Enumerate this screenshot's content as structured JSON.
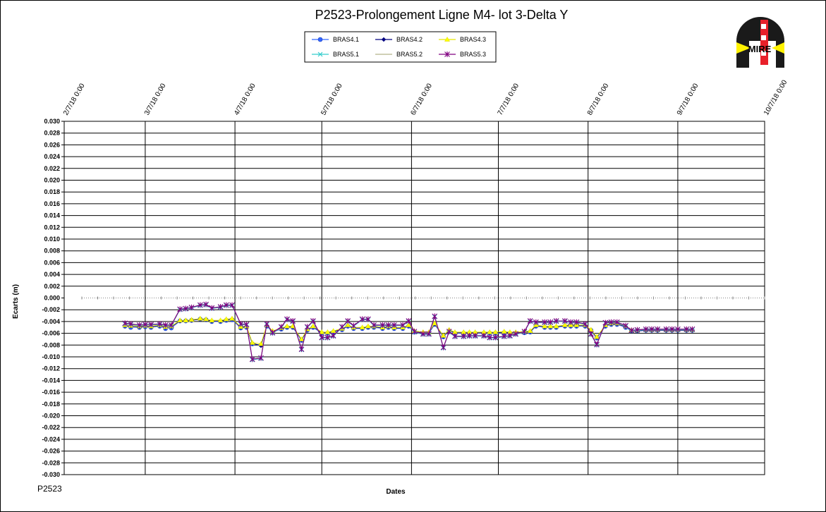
{
  "footnote": "P2523",
  "logo": {
    "name": "mire-logo",
    "text": "MIRE",
    "colors": {
      "dark": "#1a1a1a",
      "red": "#e8202a",
      "yellow": "#fff200"
    }
  },
  "chart_data": {
    "type": "line",
    "title": "P2523-Prolongement  Ligne  M4- lot 3-Delta  Y",
    "xlabel": "Dates",
    "ylabel": "Ecarts (m)",
    "xlim": [
      "2018-02-07",
      "2018-10-07"
    ],
    "x_ticks": [
      "2018-02-07",
      "2018-03-07",
      "2018-04-07",
      "2018-05-07",
      "2018-06-07",
      "2018-07-07",
      "2018-08-07",
      "2018-09-07",
      "2018-10-07"
    ],
    "x_tick_labels": [
      "2/7/18 0:00",
      "3/7/18 0:00",
      "4/7/18 0:00",
      "5/7/18 0:00",
      "6/7/18 0:00",
      "7/7/18 0:00",
      "8/7/18 0:00",
      "9/7/18 0:00",
      "10/7/18 0:00"
    ],
    "ylim": [
      -0.03,
      0.03
    ],
    "y_step": 0.002,
    "grid": true,
    "legend_position": "top-center",
    "x": [
      "2018-02-28",
      "2018-03-02",
      "2018-03-05",
      "2018-03-07",
      "2018-03-09",
      "2018-03-12",
      "2018-03-14",
      "2018-03-16",
      "2018-03-19",
      "2018-03-21",
      "2018-03-23",
      "2018-03-26",
      "2018-03-28",
      "2018-03-30",
      "2018-04-02",
      "2018-04-04",
      "2018-04-06",
      "2018-04-09",
      "2018-04-11",
      "2018-04-13",
      "2018-04-16",
      "2018-04-18",
      "2018-04-20",
      "2018-04-23",
      "2018-04-25",
      "2018-04-27",
      "2018-04-30",
      "2018-05-02",
      "2018-05-04",
      "2018-05-07",
      "2018-05-09",
      "2018-05-11",
      "2018-05-14",
      "2018-05-16",
      "2018-05-18",
      "2018-05-21",
      "2018-05-23",
      "2018-05-25",
      "2018-05-28",
      "2018-05-30",
      "2018-06-01",
      "2018-06-04",
      "2018-06-06",
      "2018-06-08",
      "2018-06-11",
      "2018-06-13",
      "2018-06-15",
      "2018-06-18",
      "2018-06-20",
      "2018-06-22",
      "2018-06-25",
      "2018-06-27",
      "2018-06-29",
      "2018-07-02",
      "2018-07-04",
      "2018-07-06",
      "2018-07-09",
      "2018-07-11",
      "2018-07-13",
      "2018-07-16",
      "2018-07-18",
      "2018-07-20",
      "2018-07-23",
      "2018-07-25",
      "2018-07-27",
      "2018-07-30",
      "2018-08-01",
      "2018-08-03",
      "2018-08-06",
      "2018-08-08",
      "2018-08-10",
      "2018-08-13",
      "2018-08-15",
      "2018-08-17",
      "2018-08-20",
      "2018-08-22",
      "2018-08-24",
      "2018-08-27",
      "2018-08-29",
      "2018-08-31",
      "2018-09-03",
      "2018-09-05",
      "2018-09-07",
      "2018-09-10",
      "2018-09-12"
    ],
    "series": [
      {
        "name": "BRAS4.1",
        "color": "#3366ff",
        "marker": "circle",
        "values": [
          -0.0048,
          -0.005,
          -0.005,
          -0.0049,
          -0.005,
          -0.0048,
          -0.0052,
          -0.0051,
          -0.0039,
          -0.0039,
          -0.0038,
          -0.0036,
          -0.0037,
          -0.004,
          -0.004,
          -0.0038,
          -0.0037,
          -0.0051,
          -0.005,
          -0.0078,
          -0.008,
          -0.0048,
          -0.0058,
          -0.0053,
          -0.005,
          -0.005,
          -0.0072,
          -0.0055,
          -0.005,
          -0.006,
          -0.006,
          -0.0058,
          -0.0054,
          -0.0048,
          -0.0052,
          -0.0052,
          -0.005,
          -0.005,
          -0.0052,
          -0.005,
          -0.0052,
          -0.0052,
          -0.0048,
          -0.0058,
          -0.006,
          -0.006,
          -0.0045,
          -0.0066,
          -0.0056,
          -0.006,
          -0.006,
          -0.006,
          -0.006,
          -0.006,
          -0.006,
          -0.006,
          -0.0059,
          -0.006,
          -0.006,
          -0.0059,
          -0.0058,
          -0.0048,
          -0.005,
          -0.005,
          -0.005,
          -0.0048,
          -0.0048,
          -0.0048,
          -0.0048,
          -0.0055,
          -0.0068,
          -0.0048,
          -0.0045,
          -0.0045,
          -0.005,
          -0.0056,
          -0.0056,
          -0.0055,
          -0.0055,
          -0.0055,
          -0.0055,
          -0.0055,
          -0.0055,
          -0.0055,
          -0.0055
        ]
      },
      {
        "name": "BRAS4.2",
        "color": "#000080",
        "marker": "diamond",
        "values": [
          -0.0047,
          -0.0048,
          -0.0049,
          -0.0048,
          -0.0049,
          -0.0047,
          -0.005,
          -0.0049,
          -0.0039,
          -0.0038,
          -0.0038,
          -0.0036,
          -0.0037,
          -0.0039,
          -0.0039,
          -0.0037,
          -0.0036,
          -0.005,
          -0.0049,
          -0.0077,
          -0.0081,
          -0.0047,
          -0.0057,
          -0.0052,
          -0.0049,
          -0.0049,
          -0.0071,
          -0.0054,
          -0.0049,
          -0.0059,
          -0.0059,
          -0.0057,
          -0.0053,
          -0.0047,
          -0.0051,
          -0.0051,
          -0.0049,
          -0.0049,
          -0.0051,
          -0.0049,
          -0.0051,
          -0.0051,
          -0.0047,
          -0.0057,
          -0.0059,
          -0.0059,
          -0.0044,
          -0.0065,
          -0.0055,
          -0.0059,
          -0.0059,
          -0.0059,
          -0.0059,
          -0.0059,
          -0.0059,
          -0.0059,
          -0.0058,
          -0.0059,
          -0.0059,
          -0.0058,
          -0.0057,
          -0.0047,
          -0.0049,
          -0.0049,
          -0.0049,
          -0.0047,
          -0.0047,
          -0.0047,
          -0.0047,
          -0.0056,
          -0.0067,
          -0.0047,
          -0.0044,
          -0.0044,
          -0.0049,
          -0.0056,
          -0.0056,
          -0.0055,
          -0.0055,
          -0.0055,
          -0.0055,
          -0.0055,
          -0.0055,
          -0.0055,
          -0.0055
        ]
      },
      {
        "name": "BRAS4.3",
        "color": "#ffff00",
        "marker": "triangle",
        "values": [
          -0.0046,
          -0.0047,
          -0.0048,
          -0.0047,
          -0.0048,
          -0.0046,
          -0.0049,
          -0.0048,
          -0.0038,
          -0.0038,
          -0.0037,
          -0.0035,
          -0.0036,
          -0.0038,
          -0.0038,
          -0.0036,
          -0.0035,
          -0.0049,
          -0.0048,
          -0.0076,
          -0.0078,
          -0.0046,
          -0.0056,
          -0.0051,
          -0.0048,
          -0.0048,
          -0.007,
          -0.0053,
          -0.0048,
          -0.0058,
          -0.0058,
          -0.0056,
          -0.0052,
          -0.0046,
          -0.005,
          -0.005,
          -0.0048,
          -0.0048,
          -0.005,
          -0.0048,
          -0.005,
          -0.005,
          -0.0046,
          -0.0056,
          -0.0058,
          -0.0058,
          -0.0043,
          -0.0064,
          -0.0054,
          -0.0058,
          -0.0058,
          -0.0058,
          -0.0058,
          -0.0058,
          -0.0058,
          -0.0058,
          -0.0057,
          -0.0058,
          -0.0058,
          -0.0057,
          -0.0056,
          -0.0046,
          -0.0048,
          -0.0048,
          -0.0048,
          -0.0046,
          -0.0046,
          -0.0046,
          -0.0046,
          -0.0054,
          -0.0066,
          -0.0046,
          -0.0043,
          -0.0043,
          -0.0048,
          -0.0055,
          -0.0055,
          -0.0054,
          -0.0054,
          -0.0054,
          -0.0054,
          -0.0054,
          -0.0054,
          -0.0054,
          -0.0054
        ]
      },
      {
        "name": "BRAS5.1",
        "color": "#33cccc",
        "marker": "x",
        "values": [
          -0.0044,
          -0.0045,
          -0.0047,
          -0.0046,
          -0.0046,
          -0.0045,
          -0.0047,
          -0.0047,
          -0.002,
          -0.0019,
          -0.0017,
          -0.0013,
          -0.0012,
          -0.0018,
          -0.0016,
          -0.0013,
          -0.0013,
          -0.0045,
          -0.0046,
          -0.0105,
          -0.0103,
          -0.0045,
          -0.006,
          -0.005,
          -0.0037,
          -0.004,
          -0.0088,
          -0.005,
          -0.004,
          -0.0068,
          -0.0068,
          -0.0065,
          -0.005,
          -0.004,
          -0.0048,
          -0.0037,
          -0.0037,
          -0.0047,
          -0.0047,
          -0.0047,
          -0.0047,
          -0.0047,
          -0.004,
          -0.0058,
          -0.0062,
          -0.0062,
          -0.0032,
          -0.0085,
          -0.0058,
          -0.0066,
          -0.0066,
          -0.0065,
          -0.0065,
          -0.0065,
          -0.0068,
          -0.0068,
          -0.0066,
          -0.0065,
          -0.0062,
          -0.0058,
          -0.004,
          -0.0042,
          -0.0042,
          -0.0042,
          -0.004,
          -0.004,
          -0.0042,
          -0.0042,
          -0.0045,
          -0.0062,
          -0.008,
          -0.0043,
          -0.0042,
          -0.0042,
          -0.0048,
          -0.0056,
          -0.0055,
          -0.0054,
          -0.0054,
          -0.0054,
          -0.0054,
          -0.0054,
          -0.0054,
          -0.0054,
          -0.0054
        ]
      },
      {
        "name": "BRAS5.2",
        "color": "#b5b58a",
        "marker": "none",
        "values": [
          -0.0043,
          -0.0044,
          -0.0046,
          -0.0045,
          -0.0045,
          -0.0044,
          -0.0046,
          -0.0046,
          -0.0019,
          -0.0018,
          -0.0016,
          -0.0012,
          -0.0011,
          -0.0017,
          -0.0015,
          -0.0012,
          -0.0012,
          -0.0044,
          -0.0045,
          -0.0104,
          -0.0102,
          -0.0044,
          -0.0059,
          -0.0049,
          -0.0036,
          -0.0039,
          -0.0087,
          -0.0049,
          -0.0039,
          -0.0067,
          -0.0067,
          -0.0064,
          -0.0049,
          -0.0039,
          -0.0047,
          -0.0036,
          -0.0036,
          -0.0046,
          -0.0046,
          -0.0046,
          -0.0046,
          -0.0046,
          -0.0039,
          -0.0057,
          -0.0061,
          -0.0061,
          -0.0031,
          -0.0084,
          -0.0057,
          -0.0065,
          -0.0065,
          -0.0064,
          -0.0064,
          -0.0064,
          -0.0067,
          -0.0067,
          -0.0065,
          -0.0064,
          -0.0061,
          -0.0057,
          -0.0039,
          -0.0041,
          -0.0041,
          -0.0041,
          -0.0039,
          -0.0039,
          -0.0041,
          -0.0041,
          -0.0044,
          -0.0061,
          -0.0079,
          -0.0042,
          -0.0041,
          -0.0041,
          -0.0047,
          -0.0055,
          -0.0054,
          -0.0053,
          -0.0053,
          -0.0053,
          -0.0053,
          -0.0053,
          -0.0053,
          -0.0053,
          -0.0053
        ]
      },
      {
        "name": "BRAS5.3",
        "color": "#800080",
        "marker": "star",
        "values": [
          -0.0043,
          -0.0044,
          -0.0046,
          -0.0045,
          -0.0045,
          -0.0044,
          -0.0046,
          -0.0046,
          -0.0019,
          -0.0018,
          -0.0016,
          -0.0012,
          -0.0011,
          -0.0017,
          -0.0015,
          -0.0012,
          -0.0012,
          -0.0044,
          -0.0045,
          -0.0104,
          -0.0102,
          -0.0044,
          -0.0059,
          -0.0049,
          -0.0036,
          -0.0039,
          -0.0087,
          -0.0049,
          -0.0039,
          -0.0067,
          -0.0067,
          -0.0064,
          -0.0049,
          -0.0039,
          -0.0047,
          -0.0036,
          -0.0036,
          -0.0046,
          -0.0046,
          -0.0046,
          -0.0046,
          -0.0046,
          -0.0039,
          -0.0057,
          -0.0061,
          -0.0061,
          -0.0031,
          -0.0084,
          -0.0057,
          -0.0065,
          -0.0065,
          -0.0064,
          -0.0064,
          -0.0064,
          -0.0067,
          -0.0067,
          -0.0065,
          -0.0064,
          -0.0061,
          -0.0057,
          -0.0039,
          -0.0041,
          -0.0041,
          -0.0041,
          -0.0039,
          -0.0039,
          -0.0041,
          -0.0041,
          -0.0044,
          -0.0061,
          -0.0079,
          -0.0042,
          -0.0041,
          -0.0041,
          -0.0047,
          -0.0055,
          -0.0054,
          -0.0053,
          -0.0053,
          -0.0053,
          -0.0053,
          -0.0053,
          -0.0053,
          -0.0053,
          -0.0053
        ]
      }
    ]
  }
}
